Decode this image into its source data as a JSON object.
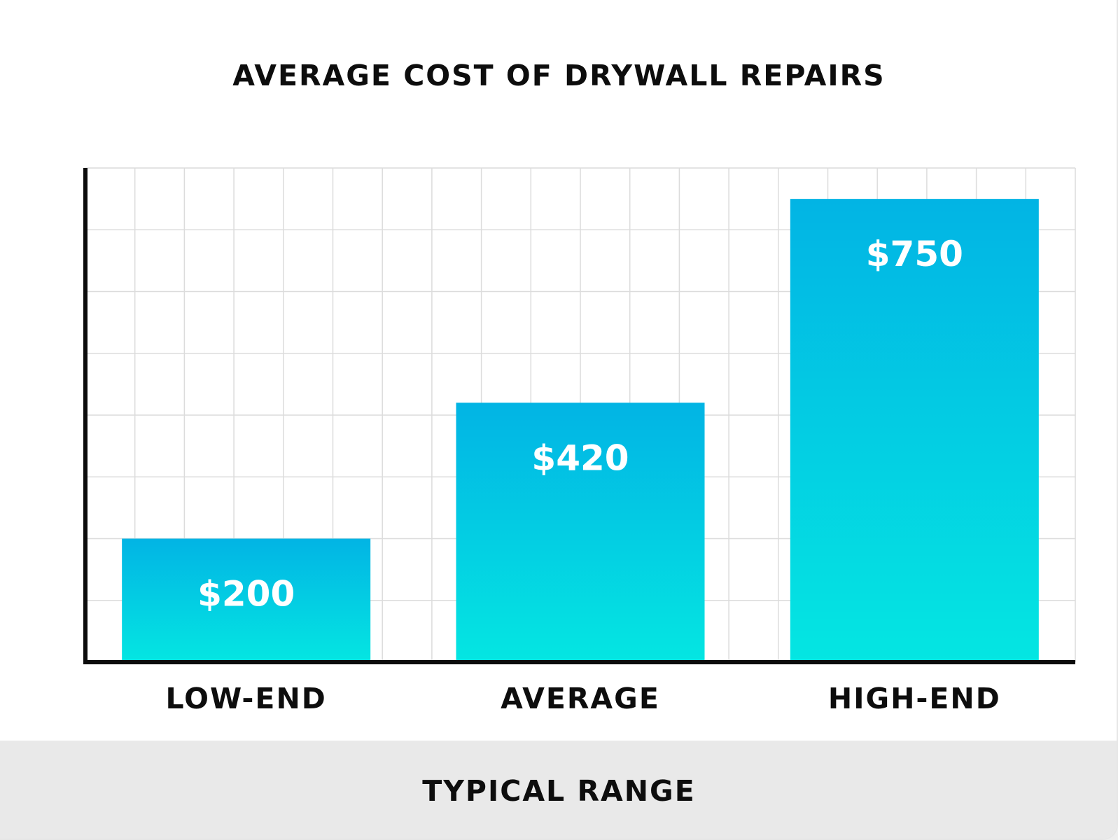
{
  "chart_data": {
    "type": "bar",
    "title": "AVERAGE COST OF DRYWALL REPAIRS",
    "xlabel": "TYPICAL RANGE",
    "ylabel": "",
    "categories": [
      "LOW-END",
      "AVERAGE",
      "HIGH-END"
    ],
    "values": [
      200,
      420,
      750
    ],
    "value_labels": [
      "$200",
      "$420",
      "$750"
    ],
    "ylim": [
      0,
      800
    ],
    "grid": true,
    "colors": {
      "bar_top": "#02b4e4",
      "bar_bottom": "#04e6e2",
      "grid": "#dcdcdc",
      "axis": "#0b0b0b",
      "value_label": "#ffffff"
    }
  }
}
